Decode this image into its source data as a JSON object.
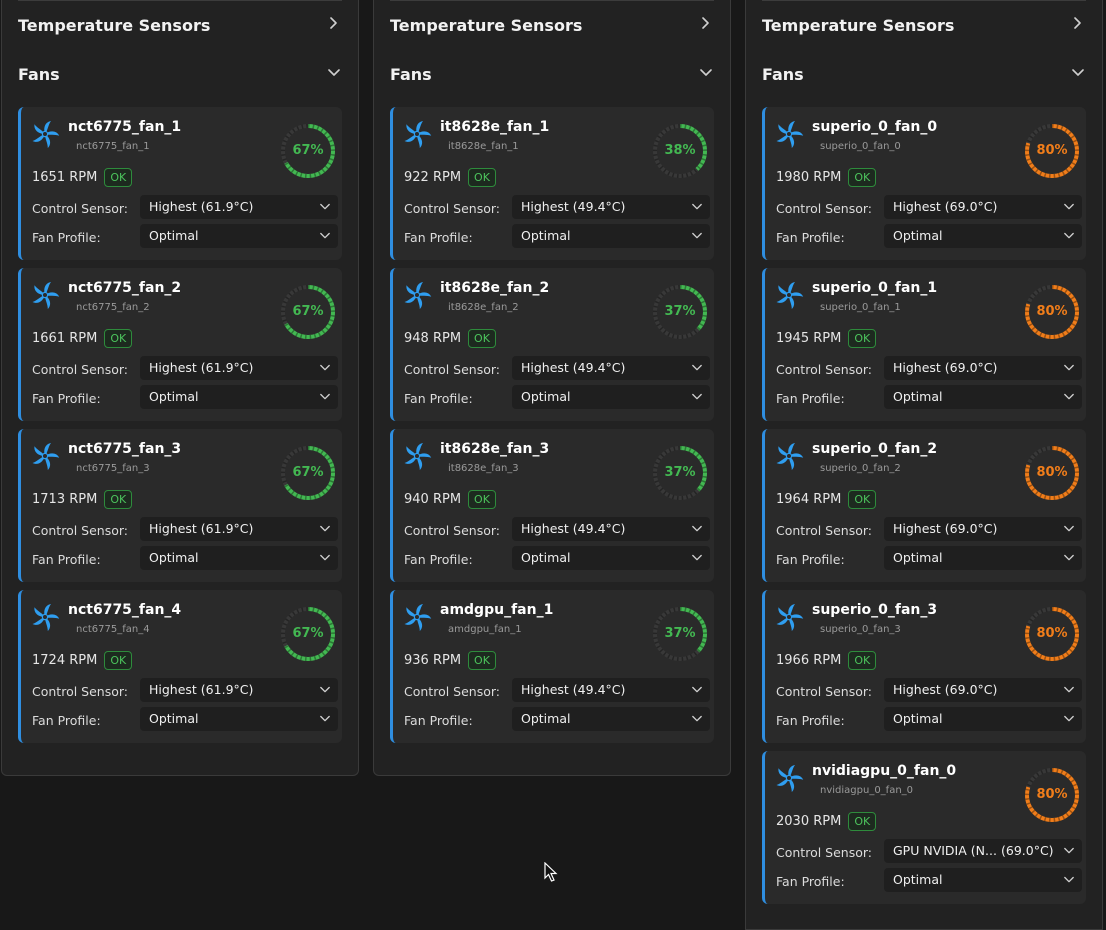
{
  "labels": {
    "temperature_sensors": "Temperature Sensors",
    "fans": "Fans",
    "control_sensor": "Control Sensor:",
    "fan_profile": "Fan Profile:",
    "ok": "OK"
  },
  "colors": {
    "green": "#43b852",
    "orange": "#f07d1a",
    "accent": "#2f8ee0",
    "fan_icon": "#2f9ef0"
  },
  "columns": [
    {
      "fans": [
        {
          "name": "nct6775_fan_1",
          "id": "nct6775_fan_1",
          "rpm": "1651 RPM",
          "percent": "67%",
          "value": 67,
          "status": "green",
          "sensor": "Highest (61.9°C)",
          "sensor_temp": "",
          "profile": "Optimal"
        },
        {
          "name": "nct6775_fan_2",
          "id": "nct6775_fan_2",
          "rpm": "1661 RPM",
          "percent": "67%",
          "value": 67,
          "status": "green",
          "sensor": "Highest (61.9°C)",
          "sensor_temp": "",
          "profile": "Optimal"
        },
        {
          "name": "nct6775_fan_3",
          "id": "nct6775_fan_3",
          "rpm": "1713 RPM",
          "percent": "67%",
          "value": 67,
          "status": "green",
          "sensor": "Highest (61.9°C)",
          "sensor_temp": "",
          "profile": "Optimal"
        },
        {
          "name": "nct6775_fan_4",
          "id": "nct6775_fan_4",
          "rpm": "1724 RPM",
          "percent": "67%",
          "value": 67,
          "status": "green",
          "sensor": "Highest (61.9°C)",
          "sensor_temp": "",
          "profile": "Optimal"
        }
      ]
    },
    {
      "fans": [
        {
          "name": "it8628e_fan_1",
          "id": "it8628e_fan_1",
          "rpm": "922 RPM",
          "percent": "38%",
          "value": 38,
          "status": "green",
          "sensor": "Highest (49.4°C)",
          "sensor_temp": "",
          "profile": "Optimal"
        },
        {
          "name": "it8628e_fan_2",
          "id": "it8628e_fan_2",
          "rpm": "948 RPM",
          "percent": "37%",
          "value": 37,
          "status": "green",
          "sensor": "Highest (49.4°C)",
          "sensor_temp": "",
          "profile": "Optimal"
        },
        {
          "name": "it8628e_fan_3",
          "id": "it8628e_fan_3",
          "rpm": "940 RPM",
          "percent": "37%",
          "value": 37,
          "status": "green",
          "sensor": "Highest (49.4°C)",
          "sensor_temp": "",
          "profile": "Optimal"
        },
        {
          "name": "amdgpu_fan_1",
          "id": "amdgpu_fan_1",
          "rpm": "936 RPM",
          "percent": "37%",
          "value": 37,
          "status": "green",
          "sensor": "Highest (49.4°C)",
          "sensor_temp": "",
          "profile": "Optimal"
        }
      ]
    },
    {
      "fans": [
        {
          "name": "superio_0_fan_0",
          "id": "superio_0_fan_0",
          "rpm": "1980 RPM",
          "percent": "80%",
          "value": 80,
          "status": "orange",
          "sensor": "Highest (69.0°C)",
          "sensor_temp": "",
          "profile": "Optimal"
        },
        {
          "name": "superio_0_fan_1",
          "id": "superio_0_fan_1",
          "rpm": "1945 RPM",
          "percent": "80%",
          "value": 80,
          "status": "orange",
          "sensor": "Highest (69.0°C)",
          "sensor_temp": "",
          "profile": "Optimal"
        },
        {
          "name": "superio_0_fan_2",
          "id": "superio_0_fan_2",
          "rpm": "1964 RPM",
          "percent": "80%",
          "value": 80,
          "status": "orange",
          "sensor": "Highest (69.0°C)",
          "sensor_temp": "",
          "profile": "Optimal"
        },
        {
          "name": "superio_0_fan_3",
          "id": "superio_0_fan_3",
          "rpm": "1966 RPM",
          "percent": "80%",
          "value": 80,
          "status": "orange",
          "sensor": "Highest (69.0°C)",
          "sensor_temp": "",
          "profile": "Optimal"
        },
        {
          "name": "nvidiagpu_0_fan_0",
          "id": "nvidiagpu_0_fan_0",
          "rpm": "2030 RPM",
          "percent": "80%",
          "value": 80,
          "status": "orange",
          "sensor": "GPU NVIDIA (N...",
          "sensor_temp": "(69.0°C)",
          "profile": "Optimal"
        }
      ]
    }
  ]
}
